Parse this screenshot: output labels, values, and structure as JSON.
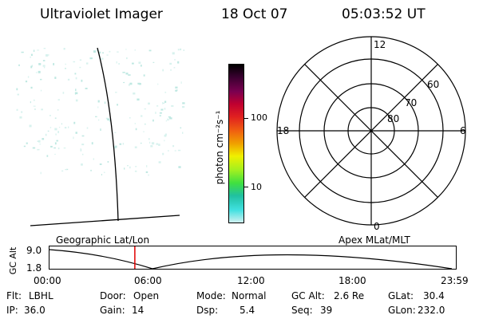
{
  "header": {
    "title": "Ultraviolet Imager",
    "date": "18 Oct 07",
    "time": "05:03:52 UT"
  },
  "geo_panel": {
    "label": "Geographic Lat/Lon"
  },
  "colorbar": {
    "label": "photon cm⁻²s⁻¹",
    "ticks": [
      "100",
      "10"
    ],
    "scale": "log",
    "colors": [
      "#000000",
      "#3a0030",
      "#7a0050",
      "#c00030",
      "#e02020",
      "#f06010",
      "#f0a000",
      "#f0f000",
      "#a0f020",
      "#40e040",
      "#20c0a0",
      "#40e0e0",
      "#d0f0f0"
    ]
  },
  "polar_plot": {
    "label": "Apex MLat/MLT",
    "mlt_labels": {
      "top": "12",
      "left": "18",
      "right": "6",
      "bottom": "0"
    },
    "lat_labels": [
      "60",
      "70",
      "80"
    ]
  },
  "timeline": {
    "ylabel": "GC Alt",
    "y_ticks": [
      "9.0",
      "1.8"
    ],
    "x_ticks": [
      "00:00",
      "06:00",
      "12:00",
      "18:00",
      "23:59"
    ],
    "current_time_fraction": 0.21
  },
  "status": {
    "row1": {
      "flt_label": "Flt:",
      "flt_value": "LBHL",
      "door_label": "Door:",
      "door_value": "Open",
      "mode_label": "Mode:",
      "mode_value": "Normal",
      "gcalt_label": "GC Alt:",
      "gcalt_value": "2.6 Re",
      "glat_label": "GLat:",
      "glat_value": "30.4"
    },
    "row2": {
      "ip_label": "IP:",
      "ip_value": "36.0",
      "gain_label": "Gain:",
      "gain_value": "14",
      "dsp_label": "Dsp:",
      "dsp_value": "5.4",
      "seq_label": "Seq:",
      "seq_value": "39",
      "glon_label": "GLon:",
      "glon_value": "232.0"
    }
  }
}
